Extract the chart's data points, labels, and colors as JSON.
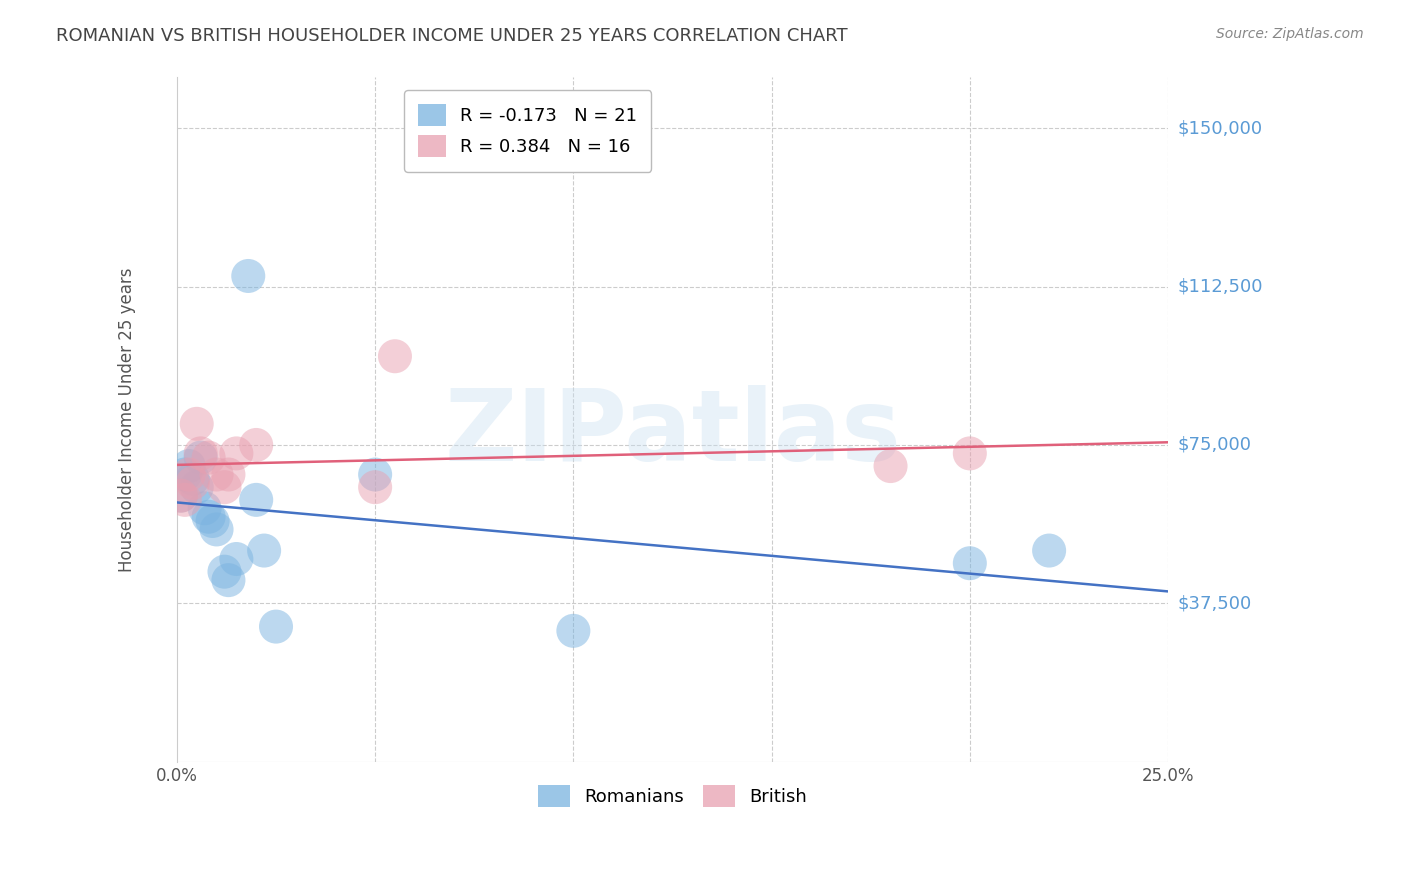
{
  "title": "ROMANIAN VS BRITISH HOUSEHOLDER INCOME UNDER 25 YEARS CORRELATION CHART",
  "source": "Source: ZipAtlas.com",
  "ylabel": "Householder Income Under 25 years",
  "watermark": "ZIPatlas",
  "xlim": [
    0.0,
    0.25
  ],
  "ylim": [
    0,
    162000
  ],
  "background_color": "#ffffff",
  "grid_color": "#cccccc",
  "romanian_color": "#7ab3e0",
  "british_color": "#e8a0b0",
  "romanian_line_color": "#4472c4",
  "british_line_color": "#e0607a",
  "romanian_label": "Romanians",
  "british_label": "British",
  "romanian_R": "-0.173",
  "romanian_N": "21",
  "british_R": "0.384",
  "british_N": "16",
  "ytick_color": "#5b9bd5",
  "ytick_vals": [
    37500,
    75000,
    112500,
    150000
  ],
  "ytick_labels": [
    "$37,500",
    "$75,000",
    "$112,500",
    "$150,000"
  ],
  "romanians_x": [
    0.001,
    0.002,
    0.003,
    0.004,
    0.005,
    0.006,
    0.007,
    0.008,
    0.009,
    0.01,
    0.012,
    0.013,
    0.015,
    0.018,
    0.02,
    0.022,
    0.025,
    0.05,
    0.1,
    0.2,
    0.22
  ],
  "romanians_y": [
    63000,
    68000,
    70000,
    67000,
    65000,
    72000,
    60000,
    58000,
    57000,
    55000,
    45000,
    43000,
    48000,
    115000,
    62000,
    50000,
    32000,
    68000,
    31000,
    47000,
    50000
  ],
  "british_x": [
    0.001,
    0.002,
    0.003,
    0.004,
    0.005,
    0.006,
    0.008,
    0.01,
    0.012,
    0.013,
    0.015,
    0.02,
    0.05,
    0.055,
    0.18,
    0.2
  ],
  "british_y": [
    63000,
    62000,
    68000,
    66000,
    80000,
    73000,
    72000,
    68000,
    65000,
    68000,
    73000,
    75000,
    65000,
    96000,
    70000,
    73000
  ]
}
